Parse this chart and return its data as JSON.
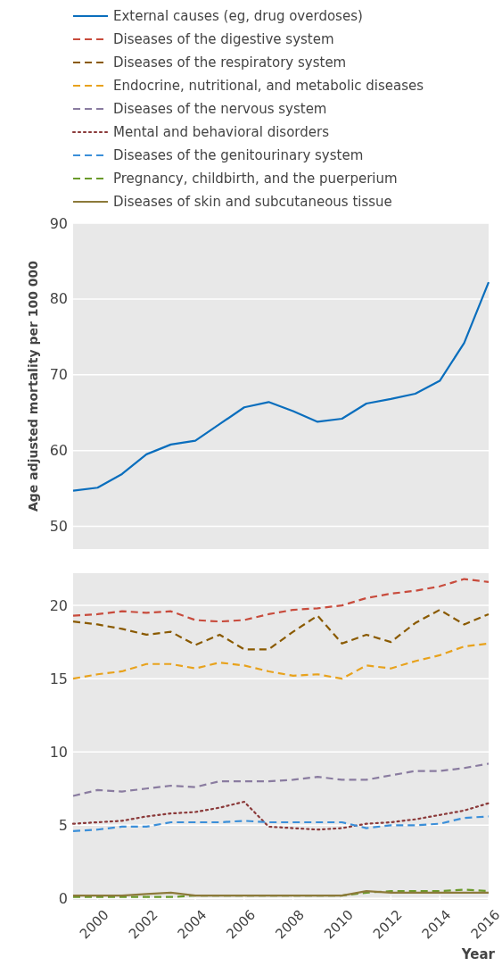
{
  "chart_data": [
    {
      "type": "line",
      "ylabel": "Age adjusted mortality per 100 000",
      "x": [
        1999,
        2000,
        2001,
        2002,
        2003,
        2004,
        2005,
        2006,
        2007,
        2008,
        2009,
        2010,
        2011,
        2012,
        2013,
        2014,
        2015,
        2016
      ],
      "xlim": [
        1999,
        2016
      ],
      "ylim": [
        47,
        90
      ],
      "yticks": [
        50,
        60,
        70,
        80,
        90
      ],
      "grid": "y",
      "legend": "top",
      "tick_labels": "y",
      "series": [
        {
          "name": "External causes (eg, drug overdoses)",
          "color": "#0a6ebd",
          "line_style": "solid",
          "values": [
            54.7,
            55.1,
            56.9,
            59.5,
            60.8,
            61.3,
            63.5,
            65.7,
            66.4,
            65.2,
            63.8,
            64.2,
            66.2,
            66.8,
            67.5,
            69.2,
            74.2,
            82.2
          ]
        }
      ]
    },
    {
      "type": "line",
      "xlabel": "Year",
      "x": [
        1999,
        2000,
        2001,
        2002,
        2003,
        2004,
        2005,
        2006,
        2007,
        2008,
        2009,
        2010,
        2011,
        2012,
        2013,
        2014,
        2015,
        2016
      ],
      "xlim": [
        1999,
        2016
      ],
      "xticks": [
        2000,
        2002,
        2004,
        2006,
        2008,
        2010,
        2012,
        2014,
        2016
      ],
      "ylim": [
        -0.1,
        22.2
      ],
      "yticks": [
        0,
        5,
        10,
        15,
        20
      ],
      "grid": "y",
      "legend": "top",
      "series": [
        {
          "name": "Diseases of the digestive system",
          "color": "#c84b3c",
          "line_style": "dashed",
          "values": [
            19.3,
            19.4,
            19.6,
            19.5,
            19.6,
            19.0,
            18.9,
            19.0,
            19.4,
            19.7,
            19.8,
            20.0,
            20.5,
            20.8,
            21.0,
            21.3,
            21.8,
            21.6
          ]
        },
        {
          "name": "Diseases of the respiratory system",
          "color": "#8a5a00",
          "line_style": "dashed",
          "values": [
            18.9,
            18.7,
            18.4,
            18.0,
            18.2,
            17.3,
            18.0,
            17.0,
            17.0,
            18.2,
            19.3,
            17.4,
            18.0,
            17.5,
            18.8,
            19.7,
            18.7,
            19.4
          ]
        },
        {
          "name": "Endocrine, nutritional, and metabolic diseases",
          "color": "#e8a21c",
          "line_style": "dashed",
          "values": [
            15.0,
            15.3,
            15.5,
            16.0,
            16.0,
            15.7,
            16.1,
            15.9,
            15.5,
            15.2,
            15.3,
            15.0,
            15.9,
            15.7,
            16.2,
            16.6,
            17.2,
            17.4
          ]
        },
        {
          "name": "Diseases of the nervous system",
          "color": "#8a7ca0",
          "line_style": "dashed",
          "values": [
            7.0,
            7.4,
            7.3,
            7.5,
            7.7,
            7.6,
            8.0,
            8.0,
            8.0,
            8.1,
            8.3,
            8.1,
            8.1,
            8.4,
            8.7,
            8.7,
            8.9,
            9.2
          ]
        },
        {
          "name": "Mental and behavioral disorders",
          "color": "#8b3a3a",
          "line_style": "dotted",
          "values": [
            5.1,
            5.2,
            5.3,
            5.6,
            5.8,
            5.9,
            6.2,
            6.6,
            4.9,
            4.8,
            4.7,
            4.8,
            5.1,
            5.2,
            5.4,
            5.7,
            6.0,
            6.5
          ]
        },
        {
          "name": "Diseases of the genitourinary system",
          "color": "#3b8fd9",
          "line_style": "dashed",
          "values": [
            4.6,
            4.7,
            4.9,
            4.9,
            5.2,
            5.2,
            5.2,
            5.3,
            5.2,
            5.2,
            5.2,
            5.2,
            4.8,
            5.0,
            5.0,
            5.1,
            5.5,
            5.6
          ]
        },
        {
          "name": "Pregnancy, childbirth, and the puerperium",
          "color": "#6a9a2a",
          "line_style": "dashed",
          "values": [
            0.1,
            0.1,
            0.1,
            0.1,
            0.1,
            0.2,
            0.2,
            0.2,
            0.2,
            0.2,
            0.2,
            0.2,
            0.4,
            0.5,
            0.5,
            0.5,
            0.6,
            0.5
          ]
        },
        {
          "name": "Diseases of skin and subcutaneous tissue",
          "color": "#8c7a3a",
          "line_style": "solid",
          "values": [
            0.2,
            0.2,
            0.2,
            0.3,
            0.4,
            0.2,
            0.2,
            0.2,
            0.2,
            0.2,
            0.2,
            0.2,
            0.5,
            0.4,
            0.4,
            0.4,
            0.4,
            0.4
          ]
        }
      ]
    }
  ]
}
